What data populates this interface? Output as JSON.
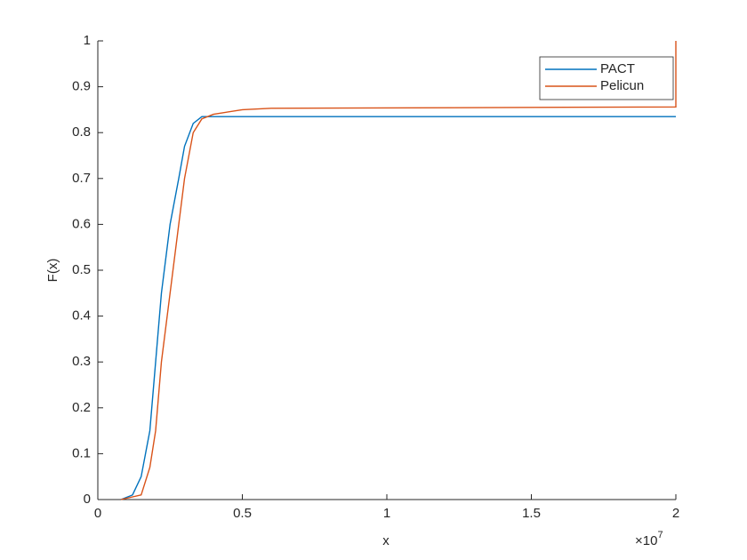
{
  "chart_data": {
    "type": "line",
    "xlabel": "x",
    "ylabel": "F(x)",
    "x_exponent": {
      "base": "×10",
      "power": "7"
    },
    "xlim": [
      0,
      2
    ],
    "xticks": [
      0,
      0.5,
      1,
      1.5,
      2
    ],
    "ylim": [
      0,
      1
    ],
    "yticks": [
      0,
      0.1,
      0.2,
      0.3,
      0.4,
      0.5,
      0.6,
      0.7,
      0.8,
      0.9,
      1
    ],
    "legend": "top-right",
    "series": [
      {
        "name": "PACT",
        "color": "#0072bd",
        "x": [
          0.08,
          0.12,
          0.15,
          0.18,
          0.2,
          0.22,
          0.25,
          0.28,
          0.3,
          0.33,
          0.36,
          2.0
        ],
        "values": [
          0,
          0.01,
          0.05,
          0.15,
          0.3,
          0.45,
          0.6,
          0.7,
          0.77,
          0.82,
          0.835,
          0.835
        ]
      },
      {
        "name": "Pelicun",
        "color": "#d95319",
        "x": [
          0.08,
          0.15,
          0.18,
          0.2,
          0.22,
          0.25,
          0.28,
          0.3,
          0.33,
          0.36,
          0.4,
          0.5,
          0.6,
          2.0,
          2.0
        ],
        "values": [
          0,
          0.01,
          0.07,
          0.15,
          0.3,
          0.45,
          0.6,
          0.7,
          0.8,
          0.83,
          0.84,
          0.85,
          0.853,
          0.856,
          1
        ]
      }
    ]
  }
}
